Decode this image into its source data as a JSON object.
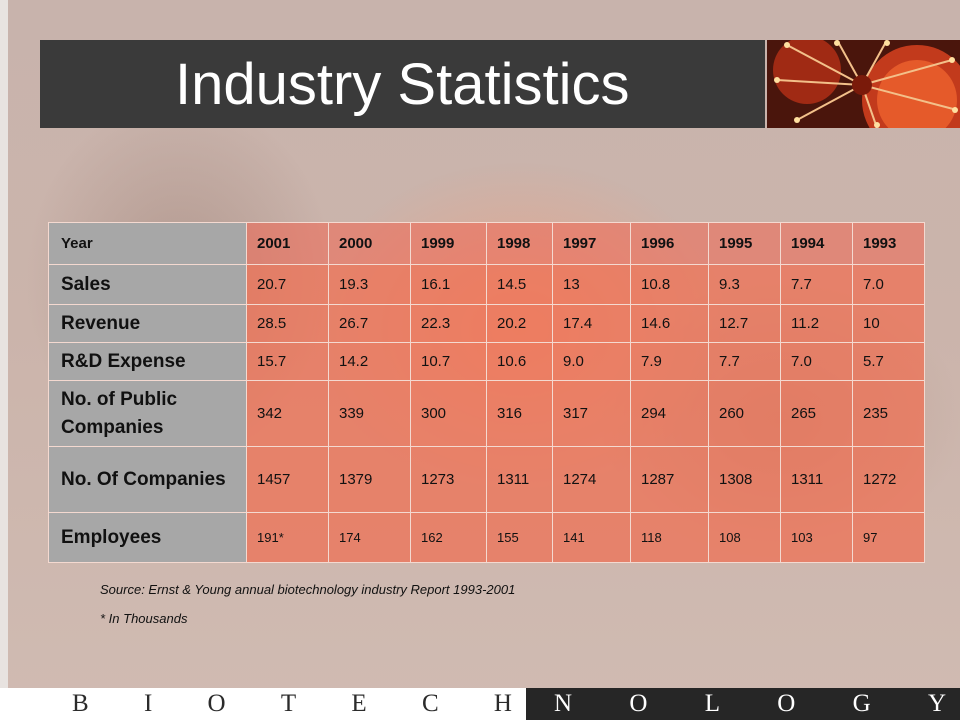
{
  "title": "Industry Statistics",
  "table": {
    "header_label": "Year",
    "years": [
      "2001",
      "2000",
      "1999",
      "1998",
      "1997",
      "1996",
      "1995",
      "1994",
      "1993"
    ],
    "rows": [
      {
        "label": "Sales",
        "values": [
          "20.7",
          "19.3",
          "16.1",
          "14.5",
          "13",
          "10.8",
          "9.3",
          "7.7",
          "7.0"
        ]
      },
      {
        "label": "Revenue",
        "values": [
          "28.5",
          "26.7",
          "22.3",
          "20.2",
          "17.4",
          "14.6",
          "12.7",
          "11.2",
          "10"
        ]
      },
      {
        "label": "R&D Expense",
        "values": [
          "15.7",
          "14.2",
          "10.7",
          "10.6",
          "9.0",
          "7.9",
          "7.7",
          "7.0",
          "5.7"
        ]
      },
      {
        "label": "No. of Public Companies",
        "values": [
          "342",
          "339",
          "300",
          "316",
          "317",
          "294",
          "260",
          "265",
          "235"
        ]
      },
      {
        "label": "No. Of Companies",
        "values": [
          "1457",
          "1379",
          "1273",
          "1311",
          "1274",
          "1287",
          "1308",
          "1311",
          "1272"
        ]
      },
      {
        "label": "Employees",
        "values": [
          "191*",
          "174",
          "162",
          "155",
          "141",
          "118",
          "108",
          "103",
          "97"
        ]
      }
    ]
  },
  "source_note": "Source:  Ernst & Young annual biotechnology industry Report 1993-2001",
  "footnote": "* In Thousands",
  "footer": {
    "left_letters": [
      "B",
      "I",
      "O",
      "T",
      "E",
      "C",
      "H"
    ],
    "right_letters": [
      "N",
      "O",
      "L",
      "O",
      "G",
      "Y"
    ]
  },
  "colors": {
    "title_bar": "#3a3a3a",
    "row_header": "#a7a7a7",
    "cell": "#f06e50",
    "footer_dark": "#262626"
  }
}
